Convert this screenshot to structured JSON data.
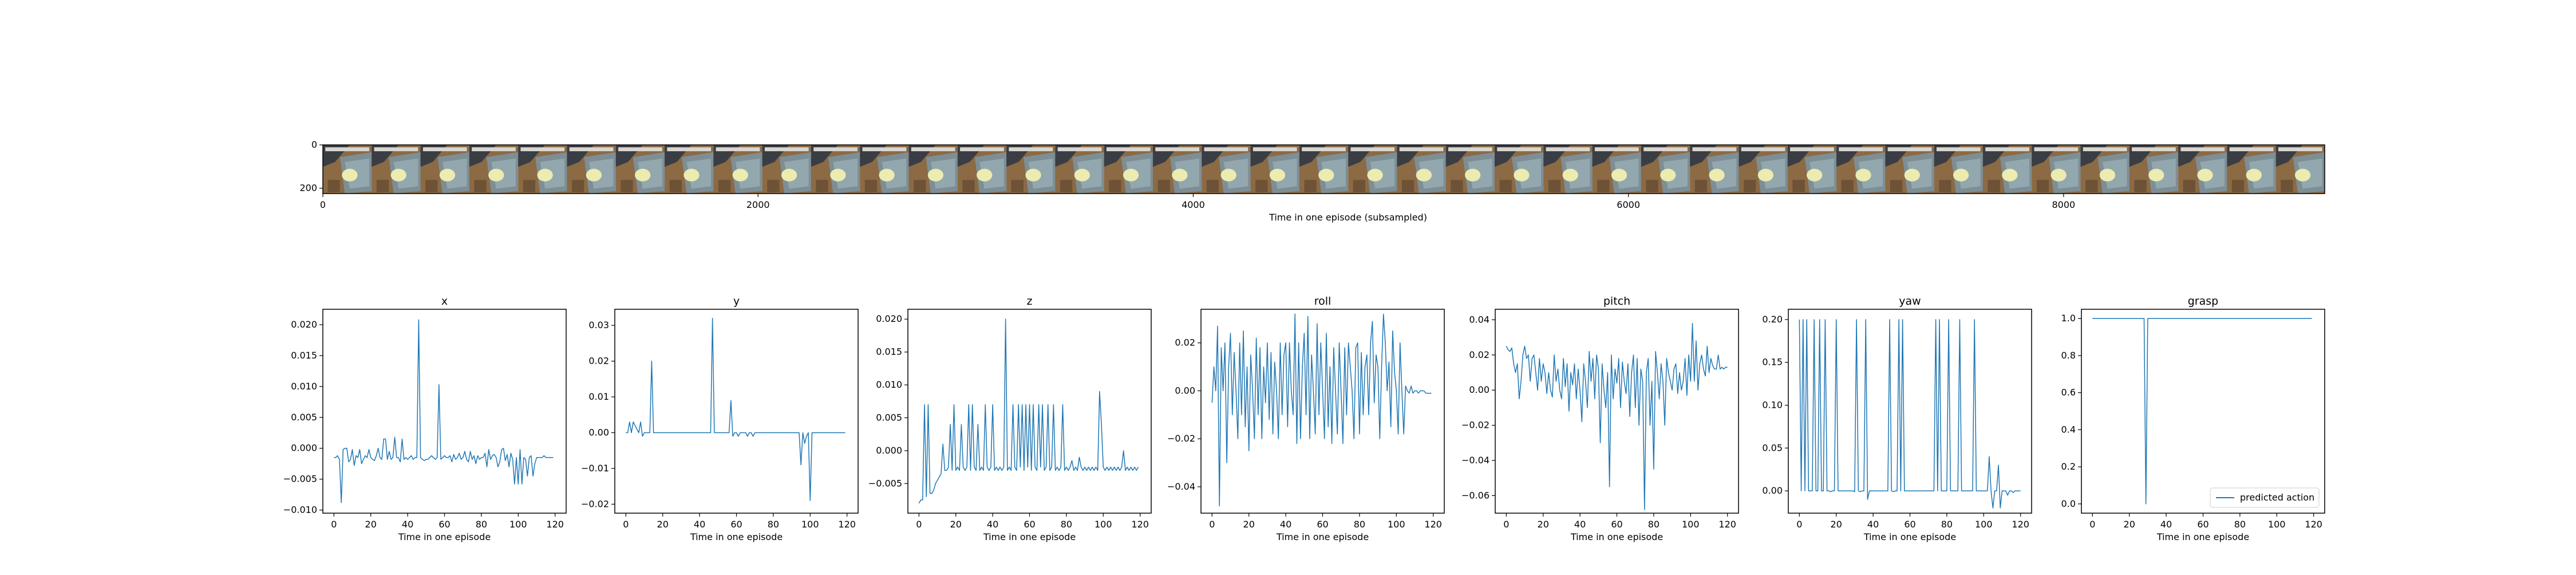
{
  "colors": {
    "line": "#1f77b4",
    "axis": "#000000",
    "legend_border": "#cccccc"
  },
  "filmstrip": {
    "xlabel": "Time in one episode (subsampled)",
    "x_ticks": [
      "0",
      "2000",
      "4000",
      "6000",
      "8000"
    ],
    "y_ticks": [
      "0",
      "200"
    ],
    "frame_count": 41
  },
  "chart_data": [
    {
      "type": "image",
      "xlabel": "Time in one episode (subsampled)",
      "xlim": [
        0,
        9200
      ],
      "ylim": [
        225,
        0
      ],
      "xticks": [
        0,
        2000,
        4000,
        6000,
        8000
      ],
      "yticks": [
        0,
        200
      ],
      "frames": 41
    },
    {
      "type": "line",
      "title": "x",
      "xlabel": "Time in one episode",
      "xlim": [
        -6,
        126
      ],
      "ylim": [
        -0.0105,
        0.0225
      ],
      "xticks": [
        0,
        20,
        40,
        60,
        80,
        100,
        120
      ],
      "yticks": [
        -0.01,
        -0.005,
        0.0,
        0.005,
        0.01,
        0.015,
        0.02
      ],
      "ytick_labels": [
        "−0.010",
        "−0.005",
        "0.000",
        "0.005",
        "0.010",
        "0.015",
        "0.020"
      ],
      "y": [
        -0.0015,
        -0.0015,
        -0.0012,
        -0.0018,
        -0.0088,
        -0.0002,
        0.0,
        0.0,
        -0.0022,
        -0.0018,
        -0.0002,
        -0.0028,
        -0.0012,
        -0.0015,
        -0.0002,
        -0.0025,
        -0.0018,
        -0.0012,
        -0.0015,
        -0.0002,
        -0.0015,
        -0.0018,
        -0.002,
        -0.0012,
        0.0,
        -0.0015,
        -0.0018,
        0.0015,
        0.0015,
        -0.0018,
        -0.0005,
        -0.0018,
        -0.0015,
        0.0018,
        -0.0015,
        -0.0015,
        -0.0022,
        0.0015,
        -0.0018,
        -0.0015,
        -0.0018,
        -0.0015,
        -0.0012,
        -0.0018,
        -0.0015,
        -0.0015,
        0.0208,
        -0.0015,
        -0.0018,
        -0.002,
        -0.0018,
        -0.0018,
        -0.0015,
        -0.0012,
        -0.0015,
        -0.0018,
        -0.0015,
        0.0103,
        -0.0018,
        -0.0015,
        -0.0012,
        -0.0015,
        -0.0015,
        -0.0012,
        -0.0022,
        -0.001,
        -0.0018,
        -0.0015,
        -0.0008,
        -0.0018,
        -0.0015,
        -0.0005,
        -0.0018,
        -0.0022,
        -0.0005,
        -0.0018,
        -0.0012,
        -0.0025,
        -0.0012,
        -0.0018,
        -0.0015,
        -0.0015,
        -0.0008,
        -0.003,
        -0.0002,
        -0.0018,
        -0.0012,
        -0.001,
        -0.0015,
        -0.003,
        -0.0022,
        -0.0002,
        0.0,
        -0.002,
        -0.001,
        -0.003,
        -0.0008,
        -0.0018,
        -0.0058,
        -0.0015,
        -0.0058,
        -0.0002,
        -0.0058,
        -0.0015,
        -0.0018,
        -0.0045,
        -0.0015,
        -0.0012,
        -0.0045,
        -0.0025,
        -0.0015,
        -0.0015,
        -0.0015,
        -0.0015,
        -0.0012,
        -0.0015,
        -0.0015,
        -0.0015,
        -0.0015,
        -0.0015
      ]
    },
    {
      "type": "line",
      "title": "y",
      "xlabel": "Time in one episode",
      "xlim": [
        -6,
        126
      ],
      "ylim": [
        -0.0225,
        0.0345
      ],
      "xticks": [
        0,
        20,
        40,
        60,
        80,
        100,
        120
      ],
      "yticks": [
        -0.02,
        -0.01,
        0.0,
        0.01,
        0.02,
        0.03
      ],
      "ytick_labels": [
        "−0.02",
        "−0.01",
        "0.00",
        "0.01",
        "0.02",
        "0.03"
      ],
      "y": [
        0.0,
        0.0,
        0.003,
        0.0,
        0.003,
        0.002,
        0.001,
        0.0,
        0.003,
        -0.001,
        0.0,
        0.0,
        0.0,
        0.0,
        0.02,
        0.0,
        0.0,
        0.0,
        0.0,
        0.0,
        0.0,
        0.0,
        0.0,
        0.0,
        0.0,
        0.0,
        0.0,
        0.0,
        0.0,
        0.0,
        0.0,
        0.0,
        0.0,
        0.0,
        0.0,
        0.0,
        0.0,
        0.0,
        0.0,
        0.0,
        0.0,
        0.0,
        0.0,
        0.0,
        0.0,
        0.0,
        0.0,
        0.032,
        0.0,
        0.0,
        0.0,
        0.0,
        0.0,
        0.0,
        0.0,
        0.0,
        0.0,
        0.009,
        -0.001,
        0.0,
        0.0,
        -0.001,
        0.0,
        0.0,
        0.0,
        0.0,
        -0.001,
        0.0,
        0.0,
        -0.001,
        0.0,
        0.0,
        0.0,
        0.0,
        0.0,
        0.0,
        0.0,
        0.0,
        0.0,
        0.0,
        0.0,
        0.0,
        0.0,
        0.0,
        0.0,
        0.0,
        0.0,
        0.0,
        0.0,
        0.0,
        0.0,
        0.0,
        0.0,
        0.0,
        0.0,
        -0.009,
        0.0,
        -0.003,
        -0.001,
        0.0,
        -0.019,
        0.0,
        0.0,
        0.0,
        0.0,
        0.0,
        0.0,
        0.0,
        0.0,
        0.0,
        0.0,
        0.0,
        0.0,
        0.0,
        0.0,
        0.0,
        0.0,
        0.0,
        0.0,
        0.0
      ]
    },
    {
      "type": "line",
      "title": "z",
      "xlabel": "Time in one episode",
      "xlim": [
        -6,
        126
      ],
      "ylim": [
        -0.0095,
        0.0215
      ],
      "xticks": [
        0,
        20,
        40,
        60,
        80,
        100,
        120
      ],
      "yticks": [
        -0.005,
        0.0,
        0.005,
        0.01,
        0.015,
        0.02
      ],
      "ytick_labels": [
        "−0.005",
        "0.000",
        "0.005",
        "0.010",
        "0.015",
        "0.020"
      ],
      "y": [
        -0.008,
        -0.0075,
        -0.0075,
        0.007,
        -0.007,
        0.007,
        -0.0065,
        -0.0065,
        -0.006,
        -0.005,
        -0.0045,
        -0.004,
        -0.0035,
        0.001,
        -0.003,
        -0.003,
        -0.0025,
        0.004,
        -0.003,
        0.007,
        -0.003,
        -0.0025,
        -0.003,
        0.004,
        -0.0025,
        -0.003,
        -0.0025,
        0.007,
        -0.003,
        0.007,
        -0.0025,
        -0.003,
        0.004,
        -0.003,
        -0.0025,
        -0.003,
        0.007,
        -0.0025,
        -0.003,
        -0.0025,
        0.007,
        -0.003,
        -0.0025,
        -0.003,
        -0.0025,
        -0.003,
        -0.0025,
        0.02,
        -0.003,
        -0.0025,
        -0.003,
        0.007,
        -0.0025,
        -0.003,
        0.007,
        -0.0025,
        0.007,
        -0.003,
        0.007,
        -0.0025,
        0.007,
        -0.003,
        0.007,
        -0.0025,
        -0.003,
        0.007,
        -0.0025,
        0.007,
        -0.003,
        -0.0025,
        0.007,
        -0.003,
        -0.0025,
        0.007,
        -0.003,
        -0.0025,
        -0.003,
        -0.0025,
        0.007,
        -0.003,
        -0.0025,
        -0.003,
        -0.0025,
        -0.0015,
        -0.003,
        -0.0025,
        -0.003,
        -0.001,
        -0.0025,
        -0.003,
        -0.0025,
        -0.003,
        -0.0025,
        -0.003,
        -0.0025,
        -0.003,
        -0.0025,
        -0.003,
        0.009,
        0.004,
        -0.0025,
        -0.003,
        -0.0025,
        -0.003,
        -0.0025,
        -0.003,
        -0.0025,
        -0.003,
        -0.0025,
        -0.003,
        -0.0025,
        0.0,
        -0.003,
        -0.0025,
        -0.003,
        -0.0025,
        -0.003,
        -0.0025,
        -0.003,
        -0.0025
      ]
    },
    {
      "type": "line",
      "title": "roll",
      "xlabel": "Time in one episode",
      "xlim": [
        -6,
        126
      ],
      "ylim": [
        -0.051,
        0.034
      ],
      "xticks": [
        0,
        20,
        40,
        60,
        80,
        100,
        120
      ],
      "yticks": [
        -0.04,
        -0.02,
        0.0,
        0.02
      ],
      "ytick_labels": [
        "−0.04",
        "−0.02",
        "0.00",
        "0.02"
      ],
      "y": [
        -0.005,
        0.01,
        0.0,
        0.027,
        -0.048,
        0.018,
        0.0,
        0.02,
        -0.03,
        0.01,
        0.024,
        -0.01,
        0.016,
        0.0,
        -0.02,
        0.02,
        -0.01,
        0.025,
        -0.015,
        0.01,
        -0.025,
        0.015,
        0.0,
        -0.02,
        0.022,
        -0.01,
        0.018,
        -0.02,
        0.01,
        -0.005,
        0.02,
        -0.012,
        0.016,
        -0.018,
        0.012,
        0.0,
        -0.02,
        0.02,
        -0.01,
        0.015,
        0.02,
        -0.015,
        0.02,
        0.0,
        -0.01,
        0.032,
        -0.022,
        0.02,
        -0.02,
        0.01,
        0.024,
        -0.01,
        0.031,
        -0.02,
        0.015,
        0.0,
        -0.018,
        0.028,
        -0.01,
        0.02,
        0.0,
        -0.02,
        0.024,
        -0.015,
        0.01,
        -0.022,
        0.018,
        0.0,
        -0.018,
        0.02,
        0.0,
        -0.022,
        0.018,
        -0.01,
        0.02,
        0.01,
        0.0,
        -0.02,
        0.018,
        0.02,
        -0.018,
        0.016,
        -0.01,
        0.01,
        0.015,
        -0.01,
        0.02,
        0.029,
        -0.005,
        0.015,
        0.01,
        -0.02,
        0.01,
        0.032,
        0.02,
        0.0,
        0.012,
        -0.015,
        0.025,
        0.008,
        0.0,
        -0.018,
        0.02,
        0.0,
        -0.018,
        0.002,
        0.0,
        -0.001,
        0.002,
        -0.001,
        0.0,
        0.0,
        -0.001,
        0.0,
        0.0,
        0.0,
        -0.001,
        -0.001,
        -0.001,
        -0.001
      ]
    },
    {
      "type": "line",
      "title": "pitch",
      "xlabel": "Time in one episode",
      "xlim": [
        -6,
        126
      ],
      "ylim": [
        -0.07,
        0.046
      ],
      "xticks": [
        0,
        20,
        40,
        60,
        80,
        100,
        120
      ],
      "yticks": [
        -0.06,
        -0.04,
        -0.02,
        0.0,
        0.02,
        0.04
      ],
      "ytick_labels": [
        "−0.06",
        "−0.04",
        "−0.02",
        "0.00",
        "0.02",
        "0.04"
      ],
      "y": [
        0.025,
        0.023,
        0.022,
        0.024,
        0.015,
        0.01,
        0.015,
        -0.005,
        0.005,
        0.02,
        0.025,
        0.018,
        0.02,
        0.005,
        0.018,
        0.02,
        0.01,
        0.0,
        0.018,
        0.005,
        0.015,
        0.01,
        -0.002,
        0.01,
        0.0,
        -0.004,
        0.02,
        0.005,
        0.012,
        0.0,
        -0.005,
        0.018,
        0.002,
        0.015,
        -0.012,
        0.01,
        0.003,
        0.015,
        -0.005,
        0.012,
        0.0,
        -0.018,
        0.015,
        0.005,
        -0.01,
        0.022,
        0.005,
        0.018,
        -0.005,
        0.02,
        0.012,
        -0.03,
        0.015,
        0.0,
        -0.01,
        0.01,
        -0.055,
        0.02,
        -0.005,
        0.012,
        0.004,
        0.018,
        -0.01,
        0.016,
        0.005,
        -0.002,
        0.015,
        -0.015,
        0.01,
        0.02,
        -0.01,
        0.018,
        -0.02,
        0.012,
        0.005,
        -0.068,
        0.01,
        0.018,
        -0.02,
        0.005,
        -0.045,
        0.022,
        0.01,
        -0.005,
        0.015,
        0.005,
        -0.02,
        0.018,
        0.01,
        0.005,
        0.0,
        0.012,
        0.015,
        -0.002,
        0.01,
        0.0,
        0.005,
        0.018,
        -0.003,
        0.02,
        0.005,
        0.038,
        0.005,
        0.028,
        0.0,
        0.015,
        0.02,
        0.012,
        0.008,
        0.025,
        0.01,
        0.018,
        0.014,
        0.012,
        0.012,
        0.02,
        0.012,
        0.013,
        0.012,
        0.013,
        0.013
      ]
    },
    {
      "type": "line",
      "title": "yaw",
      "xlabel": "Time in one episode",
      "xlim": [
        -6,
        126
      ],
      "ylim": [
        -0.026,
        0.212
      ],
      "xticks": [
        0,
        20,
        40,
        60,
        80,
        100,
        120
      ],
      "yticks": [
        0.0,
        0.05,
        0.1,
        0.15,
        0.2
      ],
      "ytick_labels": [
        "0.00",
        "0.05",
        "0.10",
        "0.15",
        "0.20"
      ],
      "y": [
        0.2,
        0.0,
        0.2,
        0.0,
        0.2,
        0.0,
        0.0,
        0.0,
        0.2,
        0.0,
        0.0,
        0.2,
        0.0,
        0.0,
        0.2,
        0.0,
        0.0,
        -0.001,
        0.0,
        0.0,
        0.2,
        0.0,
        0.0,
        0.0,
        0.0,
        0.0,
        0.0,
        0.0,
        0.0,
        0.0,
        -0.001,
        0.2,
        0.0,
        -0.001,
        0.0,
        0.0,
        0.2,
        -0.01,
        0.0,
        0.0,
        0.0,
        0.0,
        0.0,
        0.0,
        0.0,
        0.0,
        0.0,
        0.0,
        0.0,
        0.2,
        0.0,
        -0.001,
        0.0,
        0.0,
        0.2,
        0.0,
        0.2,
        0.0,
        0.0,
        0.0,
        0.0,
        0.0,
        0.0,
        0.0,
        0.0,
        0.0,
        0.0,
        0.0,
        0.0,
        0.0,
        0.0,
        0.0,
        0.0,
        0.0,
        0.2,
        0.0,
        0.2,
        0.0,
        0.0,
        0.0,
        0.0,
        0.2,
        0.0,
        0.0,
        0.0,
        0.0,
        0.0,
        0.2,
        0.0,
        0.0,
        0.0,
        0.0,
        0.0,
        0.0,
        0.0,
        0.2,
        0.0,
        0.0,
        0.0,
        0.0,
        0.0,
        0.0,
        0.0,
        0.04,
        0.0,
        -0.02,
        0.0,
        0.0,
        0.03,
        -0.02,
        0.0,
        0.0,
        0.0,
        -0.005,
        0.0,
        0.0,
        -0.002,
        0.0,
        0.0,
        0.0,
        0.0
      ]
    },
    {
      "type": "line",
      "title": "grasp",
      "xlabel": "Time in one episode",
      "xlim": [
        -6,
        126
      ],
      "ylim": [
        -0.05,
        1.05
      ],
      "xticks": [
        0,
        20,
        40,
        60,
        80,
        100,
        120
      ],
      "yticks": [
        0.0,
        0.2,
        0.4,
        0.6,
        0.8,
        1.0
      ],
      "ytick_labels": [
        "0.0",
        "0.2",
        "0.4",
        "0.6",
        "0.8",
        "1.0"
      ],
      "legend": "predicted action",
      "legend_loc": "lower right",
      "y": [
        1,
        1,
        1,
        1,
        1,
        1,
        1,
        1,
        1,
        1,
        1,
        1,
        1,
        1,
        1,
        1,
        1,
        1,
        1,
        1,
        1,
        1,
        1,
        1,
        1,
        1,
        1,
        1,
        1,
        0,
        1,
        1,
        1,
        1,
        1,
        1,
        1,
        1,
        1,
        1,
        1,
        1,
        1,
        1,
        1,
        1,
        1,
        1,
        1,
        1,
        1,
        1,
        1,
        1,
        1,
        1,
        1,
        1,
        1,
        1,
        1,
        1,
        1,
        1,
        1,
        1,
        1,
        1,
        1,
        1,
        1,
        1,
        1,
        1,
        1,
        1,
        1,
        1,
        1,
        1,
        1,
        1,
        1,
        1,
        1,
        1,
        1,
        1,
        1,
        1,
        1,
        1,
        1,
        1,
        1,
        1,
        1,
        1,
        1,
        1,
        1,
        1,
        1,
        1,
        1,
        1,
        1,
        1,
        1,
        1,
        1,
        1,
        1,
        1,
        1,
        1,
        1,
        1,
        1,
        1
      ]
    }
  ]
}
